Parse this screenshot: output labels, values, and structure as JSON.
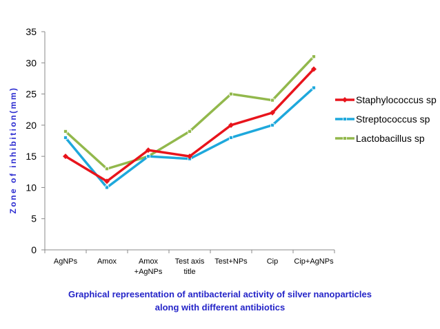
{
  "chart_data": {
    "type": "line",
    "title": "",
    "xlabel": "",
    "ylabel": "Zone of inhibition(mm)",
    "ylim": [
      0,
      35
    ],
    "yticks": [
      0,
      5,
      10,
      15,
      20,
      25,
      30,
      35
    ],
    "categories": [
      [
        "AgNPs"
      ],
      [
        "Amox"
      ],
      [
        "Amox",
        "+AgNPs"
      ],
      [
        "Test axis",
        "title"
      ],
      [
        "Test+NPs"
      ],
      [
        "Cip"
      ],
      [
        "Cip+AgNPs"
      ]
    ],
    "series": [
      {
        "name": "Staphylococcus sp",
        "color": "#e8141c",
        "marker": "diamond",
        "values": [
          15,
          11,
          16,
          15,
          20,
          22,
          29
        ]
      },
      {
        "name": "Streptococcus sp",
        "color": "#1ea8dc",
        "marker": "square",
        "values": [
          18,
          10,
          15,
          14.6,
          18,
          20,
          26
        ]
      },
      {
        "name": "Lactobacillus sp",
        "color": "#92b84c",
        "marker": "square",
        "values": [
          19,
          13,
          15,
          19,
          25,
          24,
          31
        ]
      }
    ],
    "legend_position": "right",
    "grid": false
  },
  "caption": {
    "line1": "Graphical representation of antibacterial activity of silver nanoparticles",
    "line2": "along with different antibiotics"
  }
}
